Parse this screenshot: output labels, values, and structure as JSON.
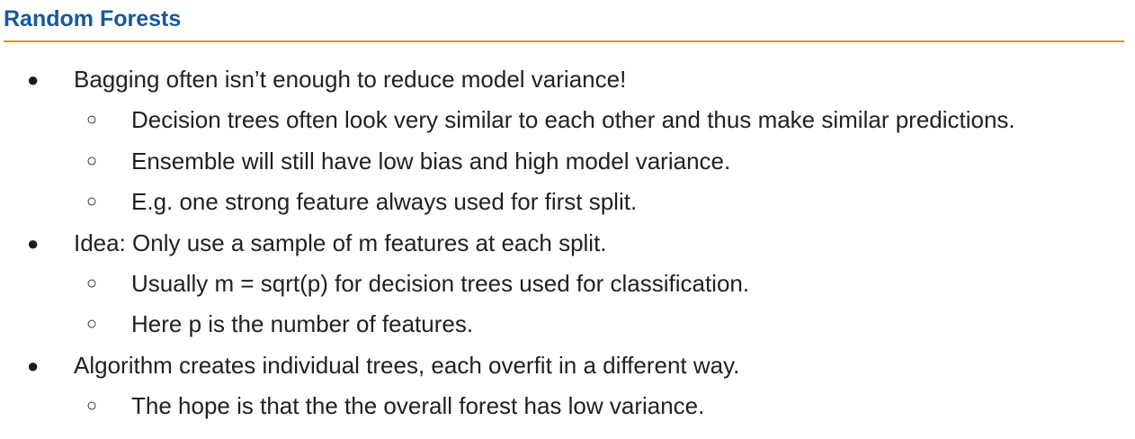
{
  "slide": {
    "title": "Random Forests",
    "colors": {
      "title": "#17589a",
      "rule": "#c99a1d",
      "text": "#212121"
    },
    "bullets": [
      {
        "level": 1,
        "marker": "●",
        "text": "Bagging often isn’t enough to reduce model variance!"
      },
      {
        "level": 2,
        "marker": "○",
        "text": "Decision trees often look very similar to each other and thus make similar predictions."
      },
      {
        "level": 2,
        "marker": "○",
        "text": "Ensemble will still have low bias and high model variance."
      },
      {
        "level": 2,
        "marker": "○",
        "text": "E.g. one strong feature always used for first split."
      },
      {
        "level": 1,
        "marker": "●",
        "text": "Idea: Only use a sample of m features at each split."
      },
      {
        "level": 2,
        "marker": "○",
        "text": "Usually m = sqrt(p) for decision trees used for classification."
      },
      {
        "level": 2,
        "marker": "○",
        "text": "Here p is the number of features."
      },
      {
        "level": 1,
        "marker": "●",
        "text": "Algorithm creates individual trees, each overfit in a different way."
      },
      {
        "level": 2,
        "marker": "○",
        "text": "The hope is that the the overall forest has low variance."
      }
    ]
  }
}
